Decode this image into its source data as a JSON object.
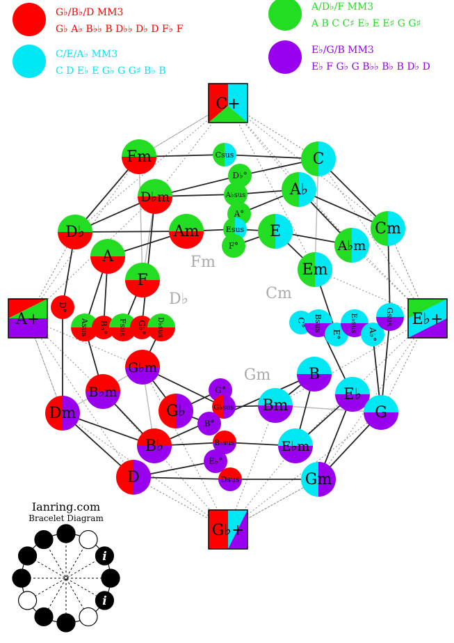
{
  "colors": {
    "red": "#ff0000",
    "green": "#22dd22",
    "cyan": "#00e8f4",
    "purple": "#9900ee",
    "label_grey": "#aaaaaa",
    "line": "#222222",
    "dotted": "#888888"
  },
  "legend": [
    {
      "title": "G♭/B♭/D MM3",
      "notes": "G♭ A♭ B♭♭ B D♭♭ D♭ D F♭ F",
      "color": "red"
    },
    {
      "title": "A/D♭/F MM3",
      "notes": "A B C C♯ E♭ E E♯ G G♯",
      "color": "green"
    },
    {
      "title": "C/E/A♭ MM3",
      "notes": "C D E♭ E G♭ G G♯ B♭ B",
      "color": "cyan"
    },
    {
      "title": "E♭/G/B MM3",
      "notes": "E♭ F G♭ G B♭♭ B♭ B D♭ D",
      "color": "purple"
    }
  ],
  "augmented": [
    {
      "id": "Caug",
      "label": "C+",
      "colors": [
        "red",
        "cyan",
        "green"
      ]
    },
    {
      "id": "Aaug",
      "label": "A+",
      "colors": [
        "red",
        "green",
        "purple"
      ]
    },
    {
      "id": "Ebaug",
      "label": "E♭+",
      "colors": [
        "green",
        "cyan",
        "purple"
      ]
    },
    {
      "id": "Gbaug",
      "label": "G♭+",
      "colors": [
        "red",
        "cyan",
        "purple"
      ]
    }
  ],
  "chords": [
    {
      "id": "Fm",
      "label": "Fm",
      "colors": [
        "green",
        "red"
      ]
    },
    {
      "id": "C",
      "label": "C",
      "colors": [
        "green",
        "cyan"
      ]
    },
    {
      "id": "Dbm",
      "label": "D♭m",
      "colors": [
        "green",
        "red"
      ]
    },
    {
      "id": "Ab",
      "label": "A♭",
      "colors": [
        "green",
        "cyan"
      ]
    },
    {
      "id": "Db",
      "label": "D♭",
      "colors": [
        "green",
        "red"
      ]
    },
    {
      "id": "Cm",
      "label": "Cm",
      "colors": [
        "green",
        "cyan"
      ]
    },
    {
      "id": "Am",
      "label": "Am",
      "colors": [
        "green",
        "red"
      ]
    },
    {
      "id": "E",
      "label": "E",
      "colors": [
        "green",
        "cyan"
      ]
    },
    {
      "id": "Abm",
      "label": "A♭m",
      "colors": [
        "green",
        "cyan"
      ]
    },
    {
      "id": "A",
      "label": "A",
      "colors": [
        "green",
        "red"
      ]
    },
    {
      "id": "F",
      "label": "F",
      "colors": [
        "green",
        "red"
      ]
    },
    {
      "id": "Em",
      "label": "Em",
      "colors": [
        "green",
        "cyan"
      ]
    },
    {
      "id": "Gbm",
      "label": "G♭m",
      "colors": [
        "red",
        "purple"
      ]
    },
    {
      "id": "Bbm",
      "label": "B♭m",
      "colors": [
        "red",
        "purple"
      ]
    },
    {
      "id": "Gb",
      "label": "G♭",
      "colors": [
        "red",
        "purple"
      ]
    },
    {
      "id": "Dm",
      "label": "Dm",
      "colors": [
        "red",
        "purple"
      ]
    },
    {
      "id": "Bb",
      "label": "B♭",
      "colors": [
        "red",
        "purple"
      ]
    },
    {
      "id": "D",
      "label": "D",
      "colors": [
        "red",
        "purple"
      ]
    },
    {
      "id": "B",
      "label": "B",
      "colors": [
        "cyan",
        "purple"
      ]
    },
    {
      "id": "Eb",
      "label": "E♭",
      "colors": [
        "cyan",
        "purple"
      ]
    },
    {
      "id": "Bm",
      "label": "Bm",
      "colors": [
        "cyan",
        "purple"
      ]
    },
    {
      "id": "G",
      "label": "G",
      "colors": [
        "cyan",
        "purple"
      ]
    },
    {
      "id": "Ebm",
      "label": "E♭m",
      "colors": [
        "cyan",
        "purple"
      ]
    },
    {
      "id": "Gm",
      "label": "Gm",
      "colors": [
        "cyan",
        "purple"
      ]
    }
  ],
  "small_chords": [
    {
      "id": "Csus",
      "label": "Csus",
      "colors": [
        "green",
        "cyan"
      ]
    },
    {
      "id": "Dbdim",
      "label": "D♭°",
      "colors": [
        "green"
      ]
    },
    {
      "id": "Absus",
      "label": "A♭sus",
      "colors": [
        "green"
      ]
    },
    {
      "id": "Adim",
      "label": "A°",
      "colors": [
        "green"
      ]
    },
    {
      "id": "Esus",
      "label": "Esus",
      "colors": [
        "green",
        "cyan"
      ]
    },
    {
      "id": "Fdim",
      "label": "F°",
      "colors": [
        "green"
      ]
    },
    {
      "id": "Ddim",
      "label": "D°",
      "colors": [
        "red"
      ]
    },
    {
      "id": "Asus",
      "label": "Asus",
      "colors": [
        "green",
        "red"
      ]
    },
    {
      "id": "Bbdim",
      "label": "B♭°",
      "colors": [
        "red"
      ]
    },
    {
      "id": "Fsus",
      "label": "Fsus",
      "colors": [
        "green",
        "red"
      ]
    },
    {
      "id": "Gbdim",
      "label": "G♭°",
      "colors": [
        "red"
      ]
    },
    {
      "id": "Dbsus",
      "label": "D♭sus",
      "colors": [
        "green",
        "red"
      ]
    },
    {
      "id": "Cdim",
      "label": "C°",
      "colors": [
        "cyan"
      ]
    },
    {
      "id": "Bsus",
      "label": "Bsus",
      "colors": [
        "cyan",
        "purple"
      ]
    },
    {
      "id": "Edim",
      "label": "E°",
      "colors": [
        "cyan"
      ]
    },
    {
      "id": "Ebsus",
      "label": "E♭sus",
      "colors": [
        "cyan",
        "purple"
      ]
    },
    {
      "id": "Abdim",
      "label": "A♭°",
      "colors": [
        "cyan"
      ]
    },
    {
      "id": "Gsus",
      "label": "Gsus",
      "colors": [
        "cyan",
        "purple"
      ]
    },
    {
      "id": "Gdim",
      "label": "G°",
      "colors": [
        "purple"
      ]
    },
    {
      "id": "Gbsus",
      "label": "G♭sus",
      "colors": [
        "red",
        "purple"
      ]
    },
    {
      "id": "Bdim",
      "label": "B°",
      "colors": [
        "purple"
      ]
    },
    {
      "id": "Bbsus",
      "label": "B♭sus",
      "colors": [
        "red",
        "purple"
      ]
    },
    {
      "id": "Ebdim",
      "label": "E♭°",
      "colors": [
        "purple"
      ]
    },
    {
      "id": "Dsus",
      "label": "Dsus",
      "colors": [
        "red",
        "purple"
      ]
    }
  ],
  "grey_labels": [
    {
      "id": "gl-fm",
      "label": "Fm"
    },
    {
      "id": "gl-cm",
      "label": "Cm"
    },
    {
      "id": "gl-db",
      "label": "D♭"
    },
    {
      "id": "gl-gm",
      "label": "Gm"
    }
  ],
  "bracelet": {
    "site": "Ianring.com",
    "caption": "Bracelet Diagram",
    "beads": [
      "filled",
      "hollow",
      "filled",
      "filled",
      "filled",
      "hollow",
      "filled",
      "filled",
      "hollow",
      "filled",
      "filled",
      "filled"
    ],
    "marker": "i"
  }
}
